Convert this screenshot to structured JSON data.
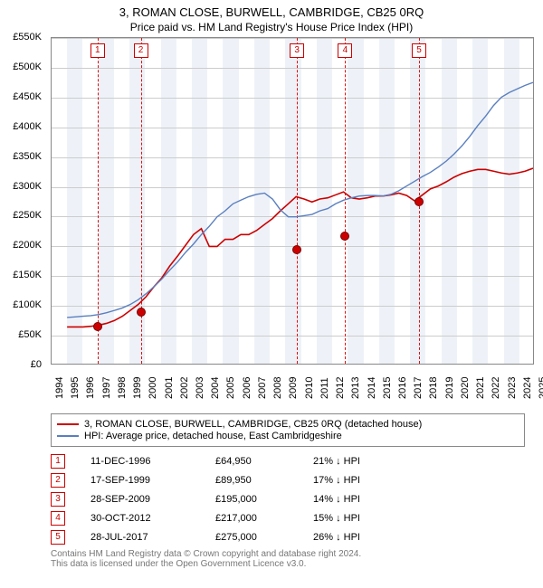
{
  "title": "3, ROMAN CLOSE, BURWELL, CAMBRIDGE, CB25 0RQ",
  "subtitle": "Price paid vs. HM Land Registry's House Price Index (HPI)",
  "chart": {
    "type": "line",
    "background_color": "#ffffff",
    "grid_color": "#cccccc",
    "shade_color": "#eef2f8",
    "axis_color": "#888888",
    "x": {
      "min": 1994,
      "max": 2025,
      "tick_step": 1,
      "label_fontsize": 11
    },
    "y": {
      "min": 0,
      "max": 550000,
      "tick_step": 50000,
      "tick_labels": [
        "£0",
        "£50K",
        "£100K",
        "£150K",
        "£200K",
        "£250K",
        "£300K",
        "£350K",
        "£400K",
        "£450K",
        "£500K",
        "£550K"
      ],
      "label_fontsize": 11
    },
    "series": [
      {
        "name": "property",
        "label": "3, ROMAN CLOSE, BURWELL, CAMBRIDGE, CB25 0RQ (detached house)",
        "color": "#cc0000",
        "line_width": 1.6,
        "start_year": 1995,
        "values": [
          62,
          62,
          62,
          63,
          65,
          68,
          73,
          80,
          90,
          100,
          113,
          130,
          145,
          165,
          182,
          200,
          218,
          228,
          198,
          198,
          210,
          210,
          218,
          218,
          225,
          235,
          245,
          258,
          270,
          282,
          278,
          273,
          278,
          280,
          285,
          290,
          280,
          278,
          280,
          283,
          283,
          285,
          288,
          284,
          275,
          285,
          295,
          300,
          307,
          315,
          321,
          325,
          328,
          328,
          325,
          322,
          320,
          322,
          325,
          330
        ]
      },
      {
        "name": "hpi",
        "label": "HPI: Average price, detached house, East Cambridgeshire",
        "color": "#5a7fbf",
        "line_width": 1.4,
        "start_year": 1995,
        "values": [
          78,
          79,
          80,
          81,
          83,
          86,
          90,
          94,
          100,
          108,
          118,
          130,
          143,
          158,
          172,
          188,
          202,
          218,
          232,
          248,
          258,
          270,
          276,
          282,
          286,
          288,
          278,
          260,
          248,
          248,
          250,
          252,
          258,
          262,
          270,
          276,
          280,
          283,
          284,
          284,
          283,
          286,
          292,
          300,
          308,
          316,
          323,
          332,
          342,
          354,
          368,
          384,
          402,
          418,
          436,
          450,
          458,
          464,
          470,
          475
        ]
      }
    ],
    "events": [
      {
        "n": "1",
        "year": 1996.95,
        "price": 64950,
        "date": "11-DEC-1996",
        "delta": "21% ↓ HPI"
      },
      {
        "n": "2",
        "year": 1999.72,
        "price": 89950,
        "date": "17-SEP-1999",
        "delta": "17% ↓ HPI"
      },
      {
        "n": "3",
        "year": 2009.74,
        "price": 195000,
        "date": "28-SEP-2009",
        "delta": "14% ↓ HPI"
      },
      {
        "n": "4",
        "year": 2012.83,
        "price": 217000,
        "date": "30-OCT-2012",
        "delta": "15% ↓ HPI"
      },
      {
        "n": "5",
        "year": 2017.57,
        "price": 275000,
        "date": "28-JUL-2017",
        "delta": "26% ↓ HPI"
      }
    ],
    "event_line_color": "#dd1111",
    "event_box_border": "#cc0000",
    "marker_fill": "#cc0000",
    "marker_border": "#770000"
  },
  "footer": {
    "line1": "Contains HM Land Registry data © Crown copyright and database right 2024.",
    "line2": "This data is licensed under the Open Government Licence v3.0."
  }
}
